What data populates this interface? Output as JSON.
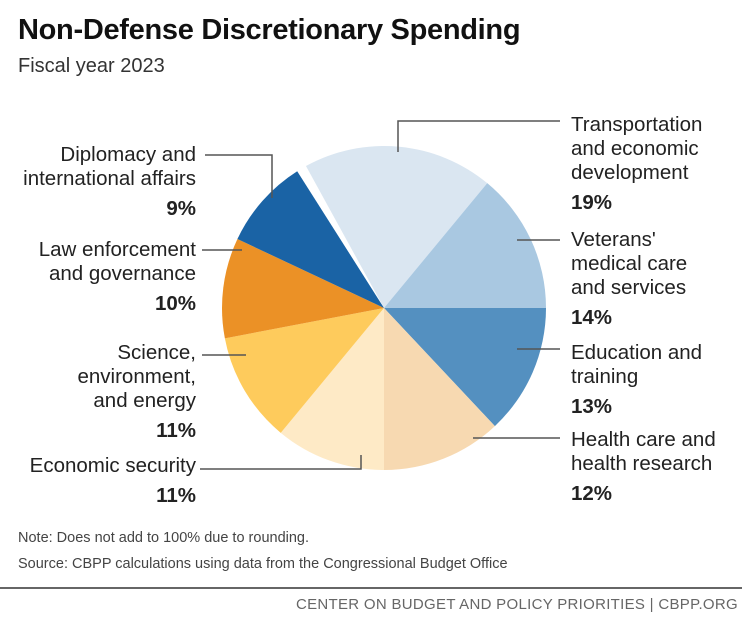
{
  "chart_data": {
    "type": "pie",
    "title": "Non-Defense Discretionary Spending",
    "subtitle": "Fiscal year 2023",
    "unit": "percent",
    "slices": [
      {
        "name": "Transportation and economic development",
        "lines": [
          "Transportation",
          "and economic",
          "development"
        ],
        "value": 19,
        "label": "19%",
        "color": "#dae6f1"
      },
      {
        "name": "Veterans' medical care and services",
        "lines": [
          "Veterans'",
          "medical care",
          "and services"
        ],
        "value": 14,
        "label": "14%",
        "color": "#a9c8e1"
      },
      {
        "name": "Education and training",
        "lines": [
          "Education and",
          "training"
        ],
        "value": 13,
        "label": "13%",
        "color": "#5490c0"
      },
      {
        "name": "Health care and health research",
        "lines": [
          "Health care and",
          "health research"
        ],
        "value": 12,
        "label": "12%",
        "color": "#f7d9b1"
      },
      {
        "name": "Economic security",
        "lines": [
          "Economic security"
        ],
        "value": 11,
        "label": "11%",
        "color": "#feeac6"
      },
      {
        "name": "Science, environment, and energy",
        "lines": [
          "Science,",
          "environment,",
          "and energy"
        ],
        "value": 11,
        "label": "11%",
        "color": "#fecb5c"
      },
      {
        "name": "Law enforcement and governance",
        "lines": [
          "Law enforcement",
          "and governance"
        ],
        "value": 10,
        "label": "10%",
        "color": "#eb9126"
      },
      {
        "name": "Diplomacy and international affairs",
        "lines": [
          "Diplomacy and",
          "international affairs"
        ],
        "value": 9,
        "label": "9%",
        "color": "#1a63a5"
      }
    ],
    "note": "Note: Does not add to 100% due to rounding.",
    "source": "Source: CBPP calculations using data from the Congressional Budget Office"
  },
  "footer": "CENTER ON BUDGET AND POLICY PRIORITIES | CBPP.ORG"
}
